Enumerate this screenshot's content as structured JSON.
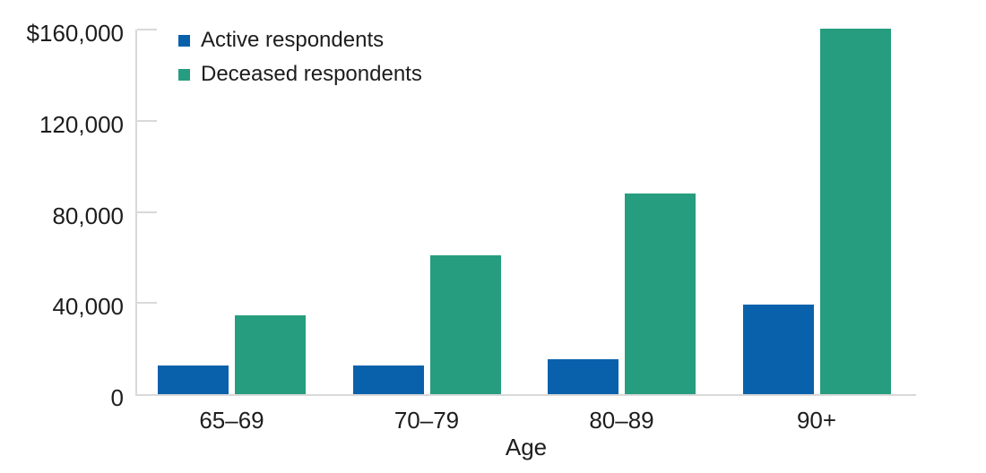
{
  "chart_data": {
    "type": "bar",
    "title": "",
    "xlabel": "Age",
    "ylabel": "",
    "categories": [
      "65–69",
      "70–79",
      "80–89",
      "90+"
    ],
    "series": [
      {
        "name": "Active respondents",
        "color": "#0961ac",
        "values": [
          12500,
          12500,
          15500,
          39500
        ]
      },
      {
        "name": "Deceased respondents",
        "color": "#269d7f",
        "values": [
          34500,
          61000,
          88000,
          160500
        ]
      }
    ],
    "ylim": [
      0,
      160000
    ],
    "yticks": [
      {
        "value": 160000,
        "label": "$160,000"
      },
      {
        "value": 120000,
        "label": "120,000"
      },
      {
        "value": 80000,
        "label": "80,000"
      },
      {
        "value": 40000,
        "label": "40,000"
      },
      {
        "value": 0,
        "label": "0"
      }
    ],
    "grid": false,
    "legend_position": "top-left-inside"
  },
  "colors": {
    "axis": "#d9d9d9",
    "text": "#1d1d1d",
    "background": "#ffffff"
  }
}
